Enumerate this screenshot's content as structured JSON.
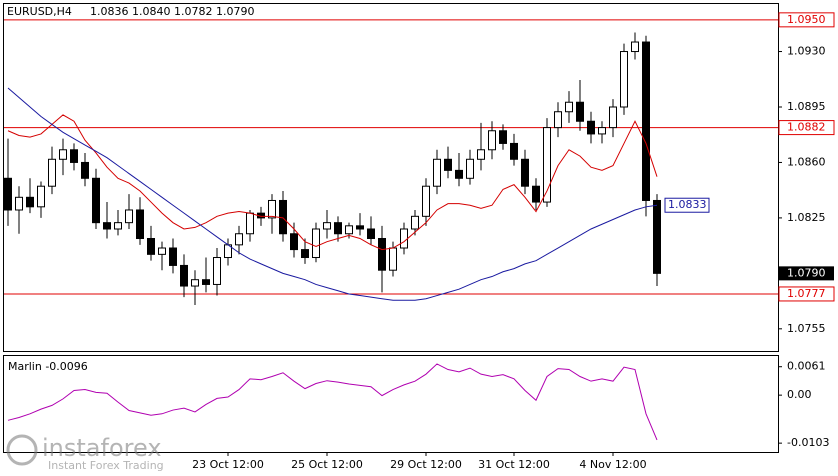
{
  "chart_data": [
    {
      "type": "candlestick",
      "title": "EURUSD,H4",
      "quote": [
        {
          "value": 1.0836,
          "label": "1.0836"
        },
        {
          "value": 1.084,
          "label": "1.0840"
        },
        {
          "value": 1.0782,
          "label": "1.0782"
        },
        {
          "value": 1.079,
          "label": "1.0790"
        }
      ],
      "ylim": [
        1.0741,
        1.096
      ],
      "yticks": [
        1.0755,
        1.0825,
        {
          "value": 1.086,
          "label": "1.0860"
        },
        1.0895,
        {
          "value": 1.093,
          "label": "1.0930"
        }
      ],
      "categories": [
        null,
        null,
        null,
        null,
        null,
        null,
        null,
        null,
        null,
        null,
        null,
        null,
        null,
        null,
        null,
        null,
        null,
        null,
        null,
        null,
        "23 Oct 12:00",
        null,
        null,
        null,
        null,
        null,
        null,
        null,
        null,
        "25 Oct 12:00",
        null,
        null,
        null,
        null,
        null,
        null,
        null,
        null,
        "29 Oct 12:00",
        null,
        null,
        null,
        null,
        null,
        null,
        null,
        "31 Oct 12:00",
        null,
        null,
        null,
        null,
        null,
        null,
        null,
        null,
        "4 Nov 12:00",
        null,
        null,
        null,
        null
      ],
      "ohlc": [
        [
          1.085,
          1.0875,
          1.082,
          1.083
        ],
        [
          1.083,
          1.0845,
          1.0815,
          1.0838
        ],
        [
          1.0838,
          1.085,
          1.0828,
          1.0832
        ],
        [
          1.0832,
          1.0848,
          1.0825,
          1.0845
        ],
        [
          1.0845,
          1.087,
          1.084,
          1.0862
        ],
        [
          1.0862,
          1.0875,
          1.0852,
          1.0868
        ],
        [
          1.0868,
          1.0872,
          1.0855,
          1.086
        ],
        [
          1.086,
          1.0866,
          1.0845,
          1.085
        ],
        [
          1.085,
          1.0856,
          1.0818,
          1.0822
        ],
        [
          1.0822,
          1.0835,
          1.0812,
          1.0818
        ],
        [
          1.0818,
          1.083,
          1.0814,
          1.0822
        ],
        [
          1.0822,
          1.084,
          1.0818,
          1.083
        ],
        [
          1.083,
          1.0838,
          1.0808,
          1.0812
        ],
        [
          1.0812,
          1.082,
          1.0798,
          1.0802
        ],
        [
          1.0802,
          1.081,
          1.0792,
          1.0806
        ],
        [
          1.0806,
          1.0812,
          1.079,
          1.0795
        ],
        [
          1.0795,
          1.0802,
          1.0775,
          1.0782
        ],
        [
          1.0782,
          1.0792,
          1.077,
          1.0786
        ],
        [
          1.0786,
          1.08,
          1.0778,
          1.0783
        ],
        [
          1.0783,
          1.0806,
          1.0776,
          1.08
        ],
        [
          1.08,
          1.0812,
          1.0795,
          1.0808
        ],
        [
          1.0808,
          1.082,
          1.0802,
          1.0815
        ],
        [
          1.0815,
          1.083,
          1.081,
          1.0828
        ],
        [
          1.0828,
          1.0832,
          1.082,
          1.0825
        ],
        [
          1.0825,
          1.084,
          1.0815,
          1.0836
        ],
        [
          1.0836,
          1.0842,
          1.081,
          1.0815
        ],
        [
          1.0815,
          1.0822,
          1.08,
          1.0805
        ],
        [
          1.0805,
          1.0812,
          1.0796,
          1.08
        ],
        [
          1.08,
          1.0822,
          1.0797,
          1.0818
        ],
        [
          1.0818,
          1.083,
          1.0812,
          1.0822
        ],
        [
          1.0822,
          1.0826,
          1.081,
          1.0815
        ],
        [
          1.0815,
          1.0822,
          1.0812,
          1.082
        ],
        [
          1.082,
          1.0828,
          1.0814,
          1.0818
        ],
        [
          1.0818,
          1.0826,
          1.0808,
          1.0812
        ],
        [
          1.0812,
          1.082,
          1.0778,
          1.0792
        ],
        [
          1.0792,
          1.081,
          1.0788,
          1.0806
        ],
        [
          1.0806,
          1.0822,
          1.0802,
          1.0818
        ],
        [
          1.0818,
          1.083,
          1.0814,
          1.0826
        ],
        [
          1.0826,
          1.085,
          1.082,
          1.0845
        ],
        [
          1.0845,
          1.0868,
          1.084,
          1.0862
        ],
        [
          1.0862,
          1.087,
          1.085,
          1.0855
        ],
        [
          1.0855,
          1.0866,
          1.0845,
          1.085
        ],
        [
          1.085,
          1.0868,
          1.0846,
          1.0862
        ],
        [
          1.0862,
          1.0885,
          1.0855,
          1.0868
        ],
        [
          1.0868,
          1.0886,
          1.0862,
          1.088
        ],
        [
          1.088,
          1.0884,
          1.0868,
          1.0872
        ],
        [
          1.0872,
          1.0878,
          1.0858,
          1.0862
        ],
        [
          1.0862,
          1.0868,
          1.084,
          1.0845
        ],
        [
          1.0845,
          1.085,
          1.083,
          1.0835
        ],
        [
          1.0835,
          1.0888,
          1.0832,
          1.0882
        ],
        [
          1.0882,
          1.0898,
          1.0876,
          1.0892
        ],
        [
          1.0892,
          1.0905,
          1.0885,
          1.0898
        ],
        [
          1.0898,
          1.0912,
          1.088,
          1.0886
        ],
        [
          1.0886,
          1.0892,
          1.0872,
          1.0878
        ],
        [
          1.0878,
          1.0886,
          1.0872,
          1.0882
        ],
        [
          1.0882,
          1.09,
          1.0876,
          1.0895
        ],
        [
          1.0895,
          1.0935,
          1.089,
          1.093
        ],
        [
          1.093,
          1.0942,
          1.0925,
          1.0936
        ],
        [
          1.0936,
          1.094,
          1.0826,
          1.0836
        ],
        [
          1.0836,
          1.084,
          1.0782,
          1.079
        ]
      ],
      "lines": [
        {
          "color": "#d40000",
          "values": [
            1.088,
            1.0877,
            1.0876,
            1.0878,
            1.0884,
            1.089,
            1.0886,
            1.0874,
            1.0866,
            1.0857,
            1.085,
            1.0847,
            1.0842,
            1.0835,
            1.0828,
            1.0822,
            1.0818,
            1.0819,
            1.0822,
            1.0826,
            1.0828,
            1.0829,
            1.0828,
            1.0826,
            1.0826,
            1.0825,
            1.0818,
            1.081,
            1.0807,
            1.081,
            1.0812,
            1.0814,
            1.0812,
            1.0808,
            1.0805,
            1.0806,
            1.081,
            1.0816,
            1.0822,
            1.083,
            1.0834,
            1.0834,
            1.0833,
            1.0831,
            1.0833,
            1.0843,
            1.0846,
            1.0838,
            1.0829,
            1.0842,
            1.0858,
            1.0868,
            1.0864,
            1.0857,
            1.0855,
            1.0858,
            1.0872,
            1.0886,
            1.0872,
            1.0851
          ]
        },
        {
          "color": "#1a1aa0",
          "end_label": "1.0833",
          "values": [
            1.0907,
            1.0901,
            1.0895,
            1.0889,
            1.0884,
            1.0879,
            1.0875,
            1.0871,
            1.0867,
            1.0863,
            1.0858,
            1.0853,
            1.0848,
            1.0843,
            1.0838,
            1.0833,
            1.0828,
            1.0823,
            1.0818,
            1.0813,
            1.0808,
            1.0803,
            1.0799,
            1.0796,
            1.0793,
            1.079,
            1.0788,
            1.0786,
            1.0783,
            1.0781,
            1.0779,
            1.0777,
            1.0776,
            1.0775,
            1.0774,
            1.0773,
            1.0773,
            1.0773,
            1.0774,
            1.0776,
            1.0778,
            1.078,
            1.0783,
            1.0786,
            1.0788,
            1.0791,
            1.0793,
            1.0796,
            1.0798,
            1.0802,
            1.0806,
            1.081,
            1.0814,
            1.0818,
            1.0821,
            1.0824,
            1.0827,
            1.083,
            1.0832,
            1.0833
          ]
        }
      ],
      "levels": [
        {
          "value": 1.095,
          "label": "1.0950"
        },
        {
          "value": 1.0882,
          "label": "1.0882"
        },
        {
          "value": 1.0777,
          "label": "1.0777"
        }
      ],
      "level_color": "#e00000",
      "last_price": {
        "value": 1.079,
        "label": "1.0790"
      }
    },
    {
      "type": "line",
      "title": "Marlin -0.0096",
      "color": "#b000b0",
      "ylim": [
        -0.0122,
        0.0084
      ],
      "yticks": [
        0.0061,
        {
          "value": 0,
          "label": "0.00"
        },
        -0.0103
      ],
      "values": [
        -0.0054,
        -0.0048,
        -0.004,
        -0.003,
        -0.0022,
        -0.0008,
        0.001,
        0.0012,
        0.0006,
        0.0004,
        -0.0015,
        -0.0033,
        -0.0038,
        -0.0043,
        -0.004,
        -0.0032,
        -0.0028,
        -0.0036,
        -0.002,
        -0.0007,
        -0.0004,
        0.0012,
        0.0035,
        0.0033,
        0.004,
        0.0048,
        0.003,
        0.0014,
        0.0025,
        0.0031,
        0.0028,
        0.0024,
        0.0021,
        0.0018,
        -0.0001,
        0.0012,
        0.0022,
        0.003,
        0.0045,
        0.0067,
        0.0055,
        0.005,
        0.0058,
        0.0045,
        0.004,
        0.0044,
        0.0035,
        0.001,
        -0.0011,
        0.004,
        0.0057,
        0.0055,
        0.004,
        0.003,
        0.0035,
        0.003,
        0.006,
        0.0055,
        -0.004,
        -0.0096
      ]
    }
  ],
  "watermark": {
    "brand": "instaforex",
    "tagline": "Instant Forex Trading"
  }
}
